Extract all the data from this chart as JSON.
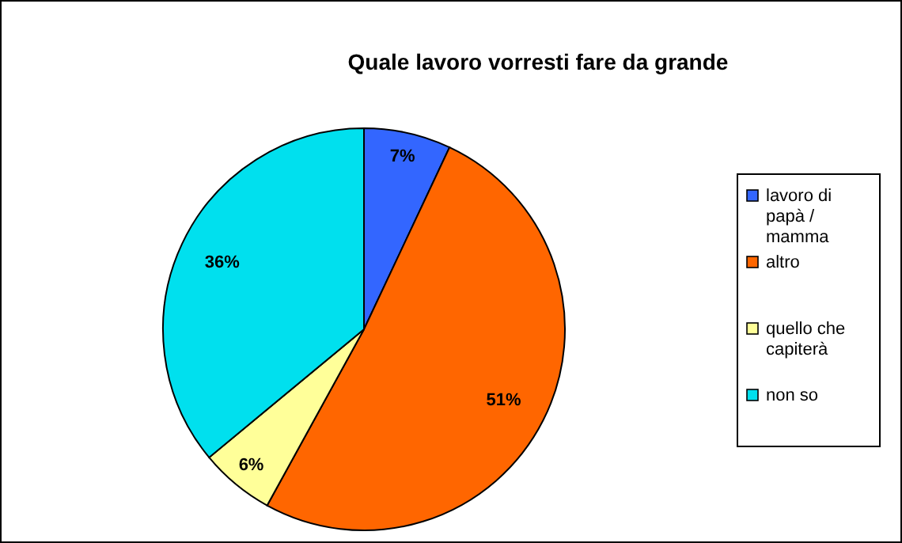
{
  "chart_data": {
    "type": "pie",
    "title": "Quale lavoro vorresti fare da grande",
    "categories": [
      "lavoro di papà / mamma",
      "altro",
      "quello che capiterà",
      "non so"
    ],
    "values": [
      7,
      51,
      6,
      36
    ],
    "colors": [
      "#3366ff",
      "#ff6600",
      "#ffff99",
      "#00e0ee"
    ],
    "value_labels": [
      "7%",
      "51%",
      "6%",
      "36%"
    ],
    "legend": "right"
  }
}
